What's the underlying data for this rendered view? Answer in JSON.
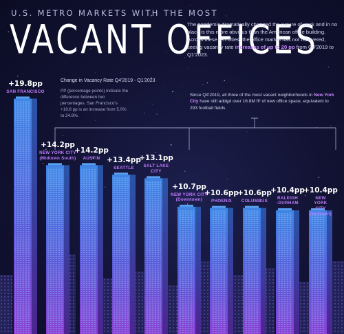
{
  "header": {
    "kicker": "U.S. METRO MARKETS WITH THE MOST",
    "title": "VACANT OFFICES"
  },
  "intro": {
    "text_before": "The pandemic dramatically changed the nature of work and in no place is this more obvious than the American office building. Across these ten cities, the office market has not recovered, seeing vacancy rate ",
    "highlight": "increases of up to 20 pp",
    "text_after": " from Q4'2019 to Q1'2023."
  },
  "legend": {
    "title": "Change in Vacancy Rate Q4'2019 - Q1'2023",
    "body": "PP (percentage points) indicate the difference between two percentages. San Francisco's +19.8 pp is an increase from 5.0% to 24.8%."
  },
  "note": {
    "text_before": "Since Q4'2019, all three of the most vacant neighborhoods in ",
    "highlight": "New York City",
    "text_after": " have still added over 16.8M ft² of new office space, equivalent to 293 football fields."
  },
  "colors": {
    "accent": "#c07cff",
    "bar_top": "#3f7de0",
    "bar_bottom": "#7b3fd0",
    "background": "#131436"
  },
  "chart_data": {
    "type": "bar",
    "title": "U.S. Metro Markets with the Most Vacant Offices",
    "ylabel": "Change in Vacancy Rate Q4'2019 - Q1'2023",
    "unit": "pp",
    "ylim": [
      0,
      20
    ],
    "categories": [
      "SAN FRANCISCO",
      "NEW YORK CITY\n(Midtown South)",
      "AUSTIN",
      "SEATTLE",
      "SALT LAKE\nCITY",
      "NEW YORK CITY\n(Downtown)",
      "PHOENIX",
      "COLUMBUS",
      "RALEIGH\n-DURHAM",
      "NEW YORK CITY\n(Midtown)"
    ],
    "values": [
      19.8,
      14.2,
      14.2,
      13.4,
      13.1,
      10.7,
      10.6,
      10.6,
      10.4,
      10.4
    ],
    "labels": [
      "+19.8pp",
      "+14.2pp",
      "+14.2pp",
      "+13.4pp",
      "+13.1pp",
      "+10.7pp",
      "+10.6pp",
      "+10.6pp",
      "+10.4pp",
      "+10.4pp"
    ]
  }
}
